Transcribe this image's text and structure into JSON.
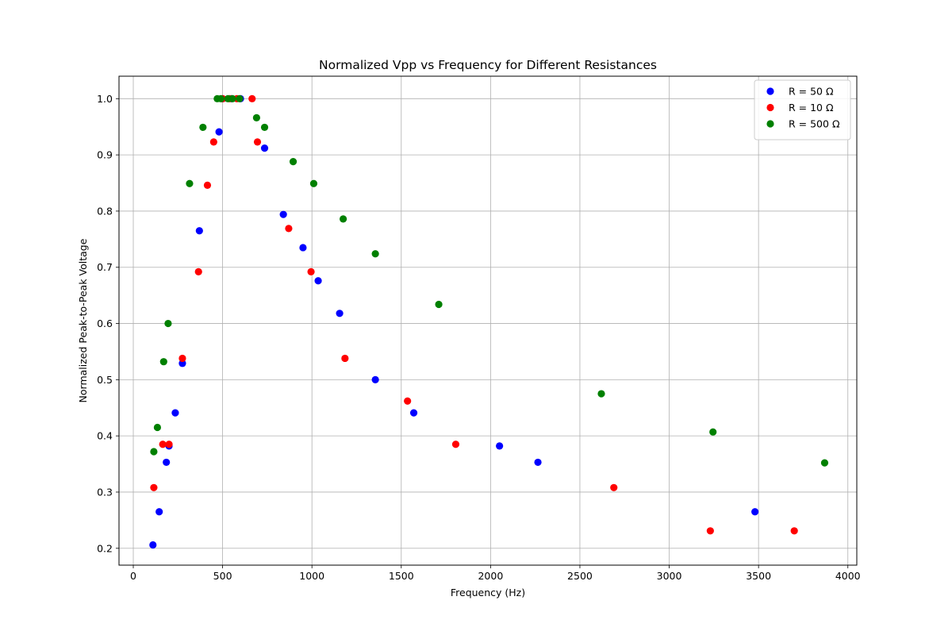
{
  "chart_data": {
    "type": "scatter",
    "title": "Normalized Vpp vs Frequency for Different Resistances",
    "xlabel": "Frequency (Hz)",
    "ylabel": "Normalized Peak-to-Peak Voltage",
    "xlim": [
      -80,
      4050
    ],
    "ylim": [
      0.17,
      1.04
    ],
    "xticks": [
      0,
      500,
      1000,
      1500,
      2000,
      2500,
      3000,
      3500,
      4000
    ],
    "xtick_labels": [
      "0",
      "500",
      "1000",
      "1500",
      "2000",
      "2500",
      "3000",
      "3500",
      "4000"
    ],
    "yticks": [
      0.2,
      0.3,
      0.4,
      0.5,
      0.6,
      0.7,
      0.8,
      0.9,
      1.0
    ],
    "ytick_labels": [
      "0.2",
      "0.3",
      "0.4",
      "0.5",
      "0.6",
      "0.7",
      "0.8",
      "0.9",
      "1.0"
    ],
    "grid": true,
    "legend_position": "top-right",
    "series": [
      {
        "name": "R = 50 Ω",
        "color": "#0000ff",
        "points": [
          [
            110,
            0.206
          ],
          [
            145,
            0.265
          ],
          [
            185,
            0.353
          ],
          [
            200,
            0.382
          ],
          [
            235,
            0.441
          ],
          [
            275,
            0.529
          ],
          [
            370,
            0.765
          ],
          [
            480,
            0.941
          ],
          [
            500,
            1.0
          ],
          [
            550,
            1.0
          ],
          [
            600,
            1.0
          ],
          [
            735,
            0.912
          ],
          [
            840,
            0.794
          ],
          [
            950,
            0.735
          ],
          [
            1035,
            0.676
          ],
          [
            1155,
            0.618
          ],
          [
            1355,
            0.5
          ],
          [
            1570,
            0.441
          ],
          [
            2050,
            0.382
          ],
          [
            2265,
            0.353
          ],
          [
            3480,
            0.265
          ]
        ]
      },
      {
        "name": "R = 10 Ω",
        "color": "#ff0000",
        "points": [
          [
            115,
            0.308
          ],
          [
            165,
            0.385
          ],
          [
            200,
            0.385
          ],
          [
            275,
            0.538
          ],
          [
            365,
            0.692
          ],
          [
            415,
            0.846
          ],
          [
            450,
            0.923
          ],
          [
            500,
            1.0
          ],
          [
            540,
            1.0
          ],
          [
            580,
            1.0
          ],
          [
            665,
            1.0
          ],
          [
            695,
            0.923
          ],
          [
            870,
            0.769
          ],
          [
            995,
            0.692
          ],
          [
            1185,
            0.538
          ],
          [
            1535,
            0.462
          ],
          [
            1805,
            0.385
          ],
          [
            2690,
            0.308
          ],
          [
            3230,
            0.231
          ],
          [
            3700,
            0.231
          ]
        ]
      },
      {
        "name": "R = 500 Ω",
        "color": "#008000",
        "points": [
          [
            115,
            0.372
          ],
          [
            135,
            0.415
          ],
          [
            170,
            0.532
          ],
          [
            195,
            0.6
          ],
          [
            315,
            0.849
          ],
          [
            390,
            0.949
          ],
          [
            470,
            1.0
          ],
          [
            490,
            1.0
          ],
          [
            530,
            1.0
          ],
          [
            555,
            1.0
          ],
          [
            595,
            1.0
          ],
          [
            690,
            0.966
          ],
          [
            735,
            0.949
          ],
          [
            895,
            0.888
          ],
          [
            1010,
            0.849
          ],
          [
            1175,
            0.786
          ],
          [
            1355,
            0.724
          ],
          [
            1710,
            0.634
          ],
          [
            2620,
            0.475
          ],
          [
            3245,
            0.407
          ],
          [
            3870,
            0.352
          ]
        ]
      }
    ]
  }
}
